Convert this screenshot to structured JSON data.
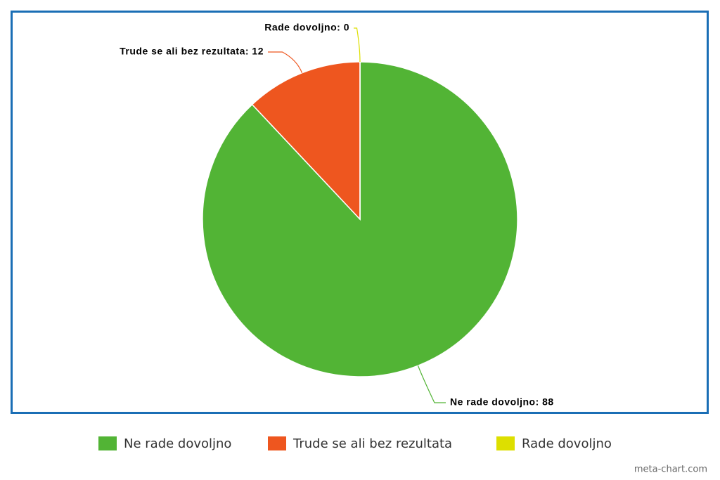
{
  "chart_data": {
    "type": "pie",
    "categories": [
      "Ne rade dovoljno",
      "Trude se ali bez rezultata",
      "Rade dovoljno"
    ],
    "values": [
      88,
      12,
      0
    ],
    "value_labels": [
      "Ne rade dovoljno: 88",
      "Trude se ali bez rezultata: 12",
      "Rade dovoljno: 0"
    ],
    "colors": [
      "#52b435",
      "#ee561f",
      "#dddf00"
    ],
    "legend": "bottom",
    "watermark": "meta-chart.com"
  }
}
